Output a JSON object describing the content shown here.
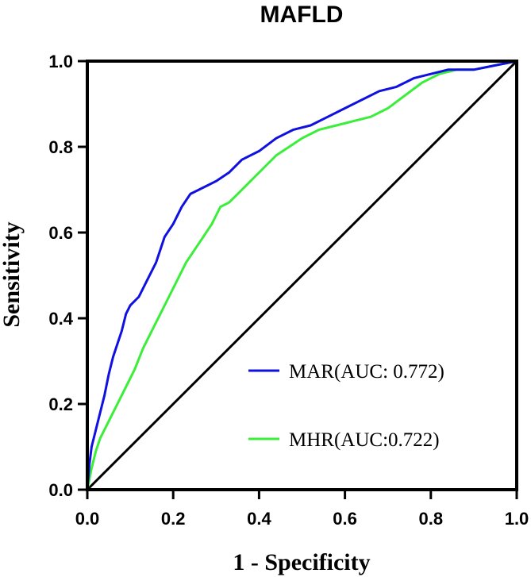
{
  "chart_data": {
    "type": "line",
    "title": "MAFLD",
    "xlabel": "1 - Specificity",
    "ylabel": "Sensitivity",
    "xlim": [
      0,
      1
    ],
    "ylim": [
      0,
      1
    ],
    "x_ticks": [
      "0.0",
      "0.2",
      "0.4",
      "0.6",
      "0.8",
      "1.0"
    ],
    "y_ticks": [
      "0.0",
      "0.2",
      "0.4",
      "0.6",
      "0.8",
      "1.0"
    ],
    "grid": false,
    "legend_position": "bottom-right",
    "reference_line": {
      "from": [
        0,
        0
      ],
      "to": [
        1,
        1
      ],
      "color": "#000000"
    },
    "series": [
      {
        "name": "MAR(AUC: 0.772)",
        "color": "#1010e0",
        "points": [
          [
            0,
            0
          ],
          [
            0.005,
            0.06
          ],
          [
            0.01,
            0.1
          ],
          [
            0.02,
            0.14
          ],
          [
            0.03,
            0.18
          ],
          [
            0.04,
            0.22
          ],
          [
            0.05,
            0.27
          ],
          [
            0.06,
            0.31
          ],
          [
            0.07,
            0.34
          ],
          [
            0.08,
            0.37
          ],
          [
            0.09,
            0.41
          ],
          [
            0.1,
            0.43
          ],
          [
            0.12,
            0.45
          ],
          [
            0.14,
            0.49
          ],
          [
            0.16,
            0.53
          ],
          [
            0.17,
            0.56
          ],
          [
            0.18,
            0.59
          ],
          [
            0.2,
            0.62
          ],
          [
            0.22,
            0.66
          ],
          [
            0.24,
            0.69
          ],
          [
            0.26,
            0.7
          ],
          [
            0.28,
            0.71
          ],
          [
            0.3,
            0.72
          ],
          [
            0.33,
            0.74
          ],
          [
            0.36,
            0.77
          ],
          [
            0.4,
            0.79
          ],
          [
            0.44,
            0.82
          ],
          [
            0.48,
            0.84
          ],
          [
            0.52,
            0.85
          ],
          [
            0.56,
            0.87
          ],
          [
            0.6,
            0.89
          ],
          [
            0.64,
            0.91
          ],
          [
            0.68,
            0.93
          ],
          [
            0.72,
            0.94
          ],
          [
            0.76,
            0.96
          ],
          [
            0.8,
            0.97
          ],
          [
            0.84,
            0.98
          ],
          [
            0.9,
            0.98
          ],
          [
            0.95,
            0.99
          ],
          [
            1,
            1
          ]
        ]
      },
      {
        "name": "MHR(AUC:0.722)",
        "color": "#3aee3a",
        "points": [
          [
            0,
            0
          ],
          [
            0.01,
            0.05
          ],
          [
            0.02,
            0.09
          ],
          [
            0.03,
            0.12
          ],
          [
            0.05,
            0.16
          ],
          [
            0.07,
            0.2
          ],
          [
            0.09,
            0.24
          ],
          [
            0.11,
            0.28
          ],
          [
            0.13,
            0.33
          ],
          [
            0.15,
            0.37
          ],
          [
            0.17,
            0.41
          ],
          [
            0.19,
            0.45
          ],
          [
            0.21,
            0.49
          ],
          [
            0.23,
            0.53
          ],
          [
            0.25,
            0.56
          ],
          [
            0.27,
            0.59
          ],
          [
            0.29,
            0.62
          ],
          [
            0.31,
            0.66
          ],
          [
            0.33,
            0.67
          ],
          [
            0.35,
            0.69
          ],
          [
            0.38,
            0.72
          ],
          [
            0.41,
            0.75
          ],
          [
            0.44,
            0.78
          ],
          [
            0.47,
            0.8
          ],
          [
            0.5,
            0.82
          ],
          [
            0.54,
            0.84
          ],
          [
            0.58,
            0.85
          ],
          [
            0.62,
            0.86
          ],
          [
            0.66,
            0.87
          ],
          [
            0.7,
            0.89
          ],
          [
            0.74,
            0.92
          ],
          [
            0.78,
            0.95
          ],
          [
            0.82,
            0.97
          ],
          [
            0.86,
            0.98
          ],
          [
            0.9,
            0.98
          ],
          [
            0.95,
            0.99
          ],
          [
            1,
            1
          ]
        ]
      }
    ]
  }
}
